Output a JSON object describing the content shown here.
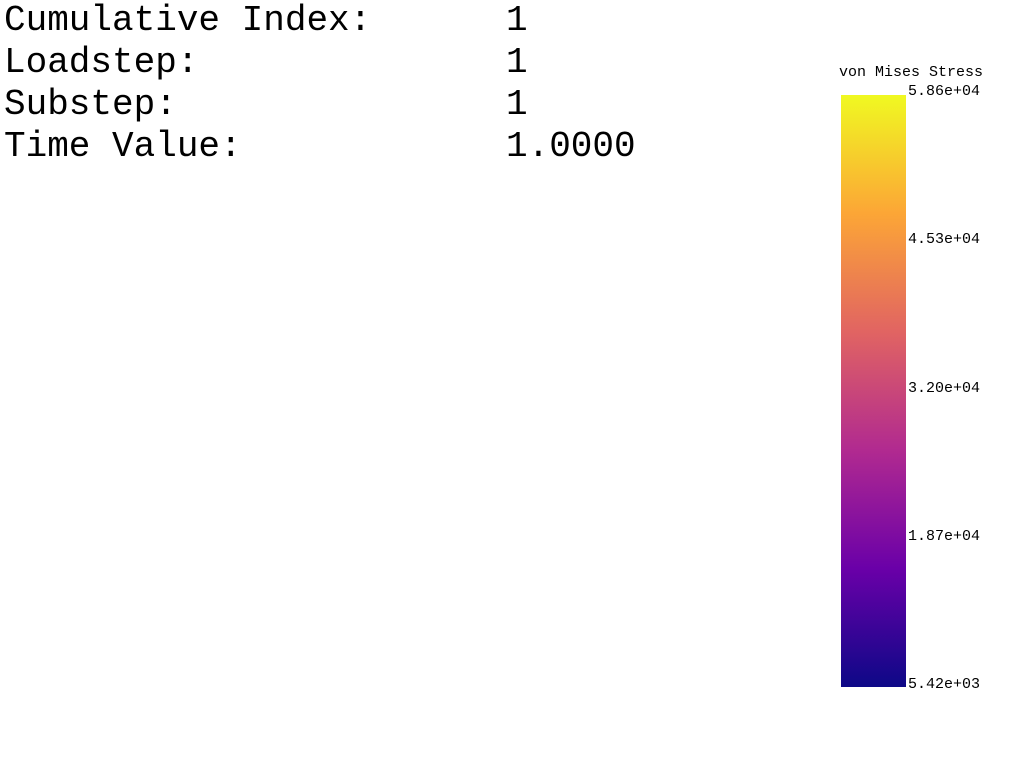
{
  "info": [
    {
      "label": "Cumulative Index:",
      "value": "1"
    },
    {
      "label": "Loadstep:",
      "value": "1"
    },
    {
      "label": "Substep:",
      "value": "1"
    },
    {
      "label": "Time Value:",
      "value": "1.0000"
    }
  ],
  "legend": {
    "title": "von Mises Stress",
    "ticks": [
      "5.86e+04",
      "4.53e+04",
      "3.20e+04",
      "1.87e+04",
      "5.42e+03"
    ],
    "colormap": "plasma",
    "colors": [
      "#0d0887",
      "#6a00a8",
      "#b12a90",
      "#e16462",
      "#fca636",
      "#f0f921"
    ]
  }
}
